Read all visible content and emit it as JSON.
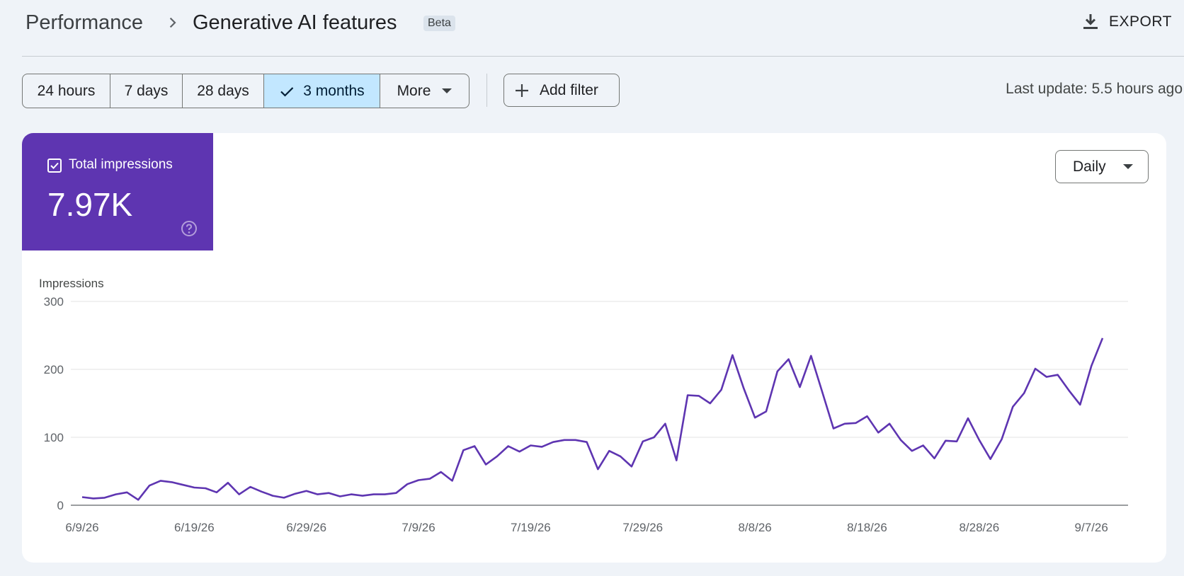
{
  "breadcrumb": {
    "root": "Performance",
    "current": "Generative AI features",
    "badge": "Beta"
  },
  "toolbar": {
    "export_label": "EXPORT",
    "last_update": "Last update: 5.5 hours ago",
    "add_filter_label": "Add filter"
  },
  "date_range": {
    "options": [
      "24 hours",
      "7 days",
      "28 days",
      "3 months"
    ],
    "selected": "3 months",
    "more_label": "More"
  },
  "metric": {
    "label": "Total impressions",
    "value": "7.97K",
    "checked": true,
    "color": "#5e35b1"
  },
  "granularity": {
    "selected": "Daily"
  },
  "chart_data": {
    "type": "line",
    "ylabel": "Impressions",
    "ylim": [
      0,
      300
    ],
    "yticks": [
      "0",
      "100",
      "200",
      "300"
    ],
    "xticks": [
      "6/9/26",
      "6/19/26",
      "6/29/26",
      "7/9/26",
      "7/19/26",
      "7/29/26",
      "8/8/26",
      "8/18/26",
      "8/28/26",
      "9/7/26"
    ],
    "x_start": "6/9/26",
    "x_end": "9/7/26",
    "line_color": "#5e35b1",
    "grid": true,
    "series": [
      {
        "values": [
          12,
          10,
          11,
          16,
          19,
          8,
          29,
          36,
          34,
          30,
          26,
          25,
          19,
          33,
          16,
          27,
          20,
          14,
          11,
          17,
          21,
          16,
          18,
          13,
          16,
          14,
          16,
          16,
          18,
          31,
          37,
          39,
          49,
          36,
          81,
          87,
          60,
          72,
          87,
          79,
          88,
          86,
          93,
          96,
          96,
          93,
          53,
          80,
          72,
          57,
          94,
          100,
          120,
          66,
          162,
          161,
          150,
          170,
          221,
          172,
          129,
          138,
          197,
          215,
          174,
          220,
          167,
          113,
          120,
          121,
          131,
          107,
          120,
          96,
          80,
          88,
          69,
          95,
          94,
          128,
          96,
          68,
          97,
          145,
          165,
          201,
          189,
          192,
          169,
          148,
          205,
          246
        ]
      }
    ]
  }
}
